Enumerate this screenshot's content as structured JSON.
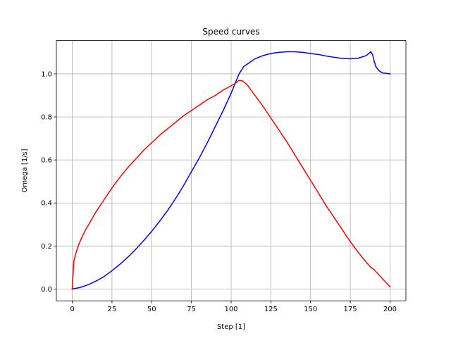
{
  "chart_data": {
    "type": "line",
    "title": "Speed curves",
    "xlabel": "Step [1]",
    "ylabel": "Omega [1/s]",
    "xlim": [
      -10,
      210
    ],
    "ylim": [
      -0.055,
      1.155
    ],
    "xticks": [
      0,
      25,
      50,
      75,
      100,
      125,
      150,
      175,
      200
    ],
    "yticks": [
      0.0,
      0.2,
      0.4,
      0.6,
      0.8,
      1.0
    ],
    "grid": true,
    "legend": "none",
    "series": [
      {
        "color": "#0000ff",
        "points": [
          [
            0,
            0
          ],
          [
            5,
            0.007
          ],
          [
            10,
            0.02
          ],
          [
            15,
            0.037
          ],
          [
            20,
            0.058
          ],
          [
            25,
            0.085
          ],
          [
            30,
            0.115
          ],
          [
            35,
            0.148
          ],
          [
            40,
            0.185
          ],
          [
            45,
            0.225
          ],
          [
            50,
            0.268
          ],
          [
            55,
            0.315
          ],
          [
            60,
            0.365
          ],
          [
            65,
            0.42
          ],
          [
            70,
            0.48
          ],
          [
            75,
            0.545
          ],
          [
            80,
            0.61
          ],
          [
            85,
            0.68
          ],
          [
            90,
            0.755
          ],
          [
            95,
            0.83
          ],
          [
            100,
            0.91
          ],
          [
            103,
            0.965
          ],
          [
            105,
            1.0
          ],
          [
            108,
            1.035
          ],
          [
            110,
            1.045
          ],
          [
            115,
            1.07
          ],
          [
            120,
            1.085
          ],
          [
            125,
            1.095
          ],
          [
            130,
            1.1
          ],
          [
            135,
            1.103
          ],
          [
            140,
            1.103
          ],
          [
            145,
            1.1
          ],
          [
            150,
            1.095
          ],
          [
            155,
            1.09
          ],
          [
            160,
            1.083
          ],
          [
            165,
            1.077
          ],
          [
            170,
            1.072
          ],
          [
            175,
            1.07
          ],
          [
            180,
            1.073
          ],
          [
            185,
            1.085
          ],
          [
            188,
            1.103
          ],
          [
            189,
            1.09
          ],
          [
            190,
            1.06
          ],
          [
            191,
            1.035
          ],
          [
            193,
            1.015
          ],
          [
            195,
            1.005
          ],
          [
            200,
            1.0
          ]
        ]
      },
      {
        "color": "#ff0000",
        "points": [
          [
            0,
            0
          ],
          [
            1,
            0.13
          ],
          [
            2,
            0.16
          ],
          [
            4,
            0.205
          ],
          [
            6,
            0.24
          ],
          [
            8,
            0.27
          ],
          [
            10,
            0.295
          ],
          [
            15,
            0.36
          ],
          [
            20,
            0.415
          ],
          [
            25,
            0.47
          ],
          [
            30,
            0.52
          ],
          [
            35,
            0.565
          ],
          [
            40,
            0.605
          ],
          [
            45,
            0.645
          ],
          [
            50,
            0.68
          ],
          [
            55,
            0.715
          ],
          [
            60,
            0.745
          ],
          [
            65,
            0.775
          ],
          [
            70,
            0.805
          ],
          [
            75,
            0.83
          ],
          [
            80,
            0.855
          ],
          [
            85,
            0.88
          ],
          [
            90,
            0.9
          ],
          [
            95,
            0.925
          ],
          [
            100,
            0.945
          ],
          [
            103,
            0.958
          ],
          [
            105,
            0.97
          ],
          [
            107,
            0.968
          ],
          [
            110,
            0.95
          ],
          [
            115,
            0.9
          ],
          [
            120,
            0.85
          ],
          [
            125,
            0.795
          ],
          [
            130,
            0.74
          ],
          [
            135,
            0.685
          ],
          [
            140,
            0.625
          ],
          [
            145,
            0.565
          ],
          [
            150,
            0.505
          ],
          [
            155,
            0.445
          ],
          [
            160,
            0.385
          ],
          [
            165,
            0.33
          ],
          [
            170,
            0.275
          ],
          [
            175,
            0.22
          ],
          [
            180,
            0.17
          ],
          [
            185,
            0.125
          ],
          [
            188,
            0.1
          ],
          [
            190,
            0.09
          ],
          [
            195,
            0.05
          ],
          [
            200,
            0.01
          ]
        ]
      }
    ]
  }
}
